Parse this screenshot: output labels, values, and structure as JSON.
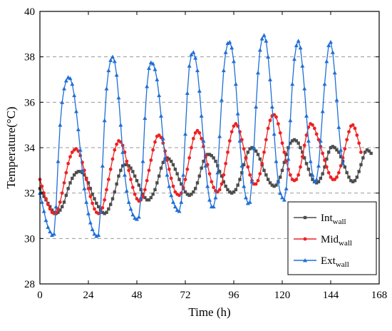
{
  "chart_data": {
    "type": "line",
    "title": "",
    "xlabel": "Time (h)",
    "ylabel": "Temperature(°C)",
    "xlim": [
      0,
      168
    ],
    "ylim": [
      28,
      40
    ],
    "x_ticks": [
      0,
      24,
      48,
      72,
      96,
      120,
      144,
      168
    ],
    "y_ticks": [
      28,
      30,
      32,
      34,
      36,
      38,
      40
    ],
    "grid": "horizontal dashed",
    "legend_position": "bottom-right",
    "sample_step_h": 1,
    "series": [
      {
        "name": "Int",
        "name_sub": "wall",
        "color": "#4d4d4d",
        "marker": "square",
        "values": [
          32.2,
          32.0,
          31.85,
          31.7,
          31.55,
          31.4,
          31.25,
          31.15,
          31.1,
          31.15,
          31.25,
          31.4,
          31.6,
          31.9,
          32.2,
          32.45,
          32.65,
          32.8,
          32.9,
          32.95,
          32.95,
          32.9,
          32.8,
          32.65,
          32.45,
          32.2,
          31.95,
          31.75,
          31.55,
          31.4,
          31.25,
          31.15,
          31.1,
          31.15,
          31.3,
          31.5,
          31.75,
          32.05,
          32.4,
          32.75,
          33.0,
          33.2,
          33.25,
          33.25,
          33.2,
          33.1,
          32.95,
          32.75,
          32.55,
          32.35,
          32.15,
          31.95,
          31.8,
          31.7,
          31.7,
          31.8,
          31.95,
          32.15,
          32.45,
          32.75,
          33.1,
          33.35,
          33.5,
          33.55,
          33.5,
          33.4,
          33.25,
          33.05,
          32.85,
          32.6,
          32.4,
          32.2,
          32.05,
          31.95,
          31.9,
          31.95,
          32.05,
          32.2,
          32.45,
          32.75,
          33.1,
          33.4,
          33.6,
          33.7,
          33.7,
          33.65,
          33.55,
          33.4,
          33.2,
          32.95,
          32.75,
          32.5,
          32.3,
          32.15,
          32.05,
          32.0,
          32.05,
          32.15,
          32.35,
          32.6,
          32.9,
          33.25,
          33.55,
          33.8,
          33.95,
          34.0,
          33.95,
          33.85,
          33.7,
          33.5,
          33.25,
          33.0,
          32.8,
          32.6,
          32.45,
          32.35,
          32.3,
          32.35,
          32.5,
          32.7,
          33.0,
          33.35,
          33.7,
          34.0,
          34.2,
          34.3,
          34.35,
          34.3,
          34.2,
          34.0,
          33.8,
          33.55,
          33.3,
          33.05,
          32.8,
          32.6,
          32.5,
          32.45,
          32.5,
          32.65,
          32.85,
          33.15,
          33.5,
          33.8,
          34.0,
          34.05,
          34.0,
          33.9,
          33.8,
          33.6,
          33.4,
          33.15,
          32.9,
          32.7,
          32.55,
          32.5,
          32.55,
          32.7,
          32.95,
          33.25,
          33.55,
          33.8,
          33.9,
          33.85,
          33.75
        ]
      },
      {
        "name": "Mid",
        "name_sub": "wall",
        "color": "#ee2222",
        "marker": "circle",
        "values": [
          32.6,
          32.3,
          32.0,
          31.75,
          31.5,
          31.3,
          31.15,
          31.1,
          31.15,
          31.3,
          31.6,
          32.0,
          32.45,
          32.9,
          33.3,
          33.6,
          33.8,
          33.9,
          33.95,
          33.85,
          33.65,
          33.35,
          33.0,
          32.6,
          32.2,
          31.85,
          31.55,
          31.3,
          31.15,
          31.1,
          31.15,
          31.35,
          31.7,
          32.15,
          32.6,
          33.05,
          33.5,
          33.9,
          34.15,
          34.3,
          34.25,
          34.1,
          33.8,
          33.4,
          33.0,
          32.6,
          32.25,
          31.95,
          31.75,
          31.65,
          31.7,
          31.85,
          32.15,
          32.55,
          33.0,
          33.45,
          33.9,
          34.25,
          34.5,
          34.55,
          34.45,
          34.2,
          33.85,
          33.45,
          33.05,
          32.65,
          32.3,
          32.05,
          31.95,
          31.9,
          32.0,
          32.25,
          32.6,
          33.05,
          33.55,
          34.0,
          34.4,
          34.65,
          34.75,
          34.65,
          34.4,
          34.05,
          33.65,
          33.25,
          32.85,
          32.5,
          32.25,
          32.1,
          32.05,
          32.15,
          32.4,
          32.8,
          33.3,
          33.8,
          34.3,
          34.7,
          34.95,
          35.05,
          34.95,
          34.7,
          34.35,
          33.95,
          33.55,
          33.15,
          32.8,
          32.55,
          32.4,
          32.4,
          32.55,
          32.85,
          33.3,
          33.8,
          34.35,
          34.85,
          35.2,
          35.4,
          35.45,
          35.35,
          35.05,
          34.65,
          34.2,
          33.8,
          33.4,
          33.05,
          32.8,
          32.6,
          32.55,
          32.6,
          32.8,
          33.15,
          33.6,
          34.1,
          34.55,
          34.9,
          35.05,
          35.0,
          34.85,
          34.6,
          34.35,
          34.05,
          33.75,
          33.45,
          33.15,
          32.9,
          32.7,
          32.6,
          32.6,
          32.7,
          32.9,
          33.2,
          33.55,
          33.95,
          34.35,
          34.7,
          34.95,
          35.0,
          34.85,
          34.55,
          34.2,
          33.8
        ]
      },
      {
        "name": "Ext",
        "name_sub": "wall",
        "color": "#1f6fd6",
        "marker": "triangle",
        "values": [
          32.0,
          31.6,
          31.2,
          30.8,
          30.5,
          30.3,
          30.15,
          30.2,
          31.4,
          33.4,
          35.0,
          36.0,
          36.6,
          36.95,
          37.1,
          37.05,
          36.8,
          36.3,
          35.6,
          34.8,
          33.9,
          33.0,
          32.2,
          31.6,
          31.1,
          30.7,
          30.4,
          30.2,
          30.1,
          30.15,
          31.2,
          33.2,
          35.2,
          36.6,
          37.4,
          37.85,
          38.0,
          37.8,
          37.2,
          36.2,
          35.0,
          33.8,
          32.8,
          32.1,
          31.6,
          31.3,
          31.05,
          30.9,
          30.85,
          30.95,
          31.8,
          33.4,
          35.3,
          36.7,
          37.5,
          37.75,
          37.7,
          37.45,
          37.0,
          36.3,
          35.4,
          34.4,
          33.5,
          32.8,
          32.3,
          31.9,
          31.6,
          31.4,
          31.25,
          31.2,
          31.6,
          32.8,
          34.6,
          36.4,
          37.6,
          38.1,
          38.2,
          37.95,
          37.4,
          36.5,
          35.4,
          34.3,
          33.2,
          32.3,
          31.7,
          31.4,
          31.4,
          31.8,
          32.9,
          34.5,
          36.1,
          37.4,
          38.2,
          38.6,
          38.65,
          38.4,
          37.8,
          36.8,
          35.5,
          34.3,
          33.2,
          32.3,
          31.8,
          31.55,
          31.6,
          32.5,
          34.0,
          35.8,
          37.3,
          38.3,
          38.8,
          38.95,
          38.7,
          38.0,
          37.0,
          35.8,
          34.6,
          33.4,
          32.5,
          32.0,
          31.8,
          31.7,
          32.2,
          33.5,
          35.2,
          36.8,
          37.9,
          38.5,
          38.7,
          38.4,
          37.6,
          36.6,
          35.4,
          34.3,
          33.4,
          32.8,
          32.5,
          32.6,
          33.2,
          34.3,
          35.6,
          36.8,
          37.8,
          38.5,
          38.65,
          38.2,
          37.3,
          36.1,
          34.9,
          33.9,
          33.3
        ]
      }
    ]
  }
}
